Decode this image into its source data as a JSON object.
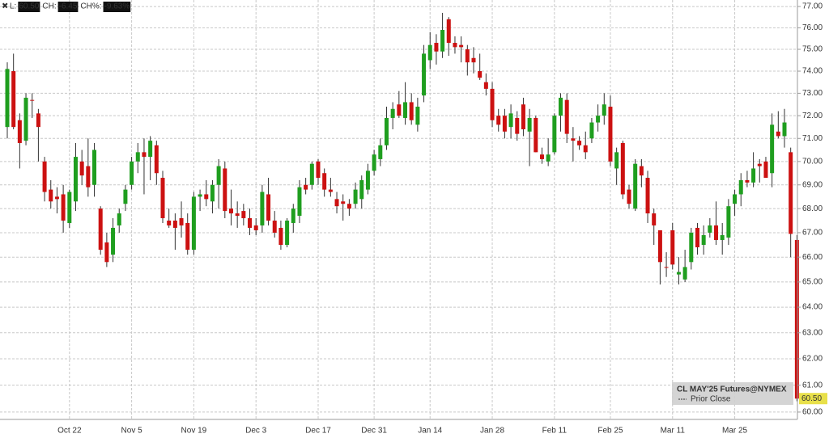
{
  "chart_data": {
    "type": "candlestick",
    "readout": [
      {
        "label": "L:",
        "value": "60.50"
      },
      {
        "label": "CH:",
        "value": "-6.45"
      },
      {
        "label": "CH%:",
        "value": "-9.63%"
      }
    ],
    "categories": [
      null,
      null,
      null,
      null,
      null,
      null,
      null,
      null,
      null,
      null,
      "Oct 22",
      null,
      null,
      null,
      null,
      null,
      null,
      null,
      null,
      null,
      "Nov 5",
      null,
      null,
      null,
      null,
      null,
      null,
      null,
      null,
      null,
      "Nov 19",
      null,
      null,
      null,
      null,
      null,
      null,
      null,
      null,
      null,
      "Dec 3",
      null,
      null,
      null,
      null,
      null,
      null,
      null,
      null,
      null,
      "Dec 17",
      null,
      null,
      null,
      null,
      null,
      null,
      null,
      null,
      "Dec 31",
      null,
      null,
      null,
      null,
      null,
      null,
      null,
      null,
      "Jan 14",
      null,
      null,
      null,
      null,
      null,
      null,
      null,
      null,
      null,
      "Jan 28",
      null,
      null,
      null,
      null,
      null,
      null,
      null,
      null,
      null,
      "Feb 11",
      null,
      null,
      null,
      null,
      null,
      null,
      null,
      null,
      "Feb 25",
      null,
      null,
      null,
      null,
      null,
      null,
      null,
      null,
      null,
      "Mar 11",
      null,
      null,
      null,
      null,
      null,
      null,
      null,
      null,
      null,
      "Mar 25",
      null,
      null,
      null,
      null,
      null,
      null,
      null,
      null,
      null,
      null
    ],
    "series": [
      {
        "name": "CL MAY'25 Futures@NYMEX",
        "up_color": "#1f9e1f",
        "down_color": "#cc1111",
        "wick_color": "#333333",
        "open": [
          71.5,
          74.0,
          71.8,
          70.9,
          72.7,
          72.1,
          70.0,
          68.8,
          68.5,
          68.6,
          67.4,
          68.3,
          70.0,
          69.8,
          69.0,
          68.0,
          66.6,
          66.1,
          67.3,
          68.2,
          69.0,
          70.0,
          70.4,
          70.2,
          70.7,
          69.3,
          67.5,
          67.5,
          67.6,
          67.4,
          66.3,
          68.5,
          68.6,
          68.3,
          69.0,
          69.7,
          68.0,
          67.8,
          67.9,
          67.6,
          67.3,
          67.3,
          68.6,
          67.5,
          67.2,
          66.5,
          67.4,
          67.7,
          69.0,
          69.0,
          70.0,
          69.5,
          68.8,
          68.4,
          68.3,
          68.2,
          68.2,
          68.4,
          68.8,
          69.6,
          70.1,
          70.7,
          71.9,
          72.5,
          71.9,
          72.6,
          71.6,
          72.9,
          74.5,
          75.3,
          74.9,
          76.4,
          75.3,
          75.2,
          75.0,
          74.6,
          74.0,
          73.5,
          73.2,
          72.0,
          72.0,
          71.5,
          71.9,
          72.5,
          71.3,
          71.9,
          70.3,
          70.0,
          70.4,
          72.0,
          72.7,
          71.0,
          70.9,
          70.7,
          71.0,
          71.7,
          72.0,
          72.4,
          69.7,
          70.8,
          68.8,
          68.0,
          69.8,
          69.3,
          67.8,
          67.1,
          65.6,
          67.1,
          65.3,
          65.1,
          65.8,
          67.2,
          66.5,
          67.0,
          67.3,
          66.7,
          66.8,
          68.2,
          68.6,
          69.2,
          69.1,
          69.9,
          70.0,
          69.5,
          71.3,
          71.1,
          70.4,
          66.7
        ],
        "high": [
          74.4,
          74.8,
          72.1,
          73.0,
          73.0,
          72.3,
          70.2,
          69.2,
          68.9,
          69.0,
          68.8,
          70.8,
          70.5,
          71.0,
          70.8,
          68.1,
          67.0,
          67.6,
          68.0,
          69.0,
          70.2,
          70.8,
          71.0,
          71.1,
          70.9,
          69.6,
          68.0,
          67.8,
          68.3,
          67.8,
          68.7,
          68.8,
          69.2,
          69.2,
          70.1,
          70.0,
          68.8,
          68.3,
          68.2,
          68.0,
          67.6,
          69.0,
          69.3,
          67.9,
          67.5,
          67.6,
          68.2,
          69.2,
          69.3,
          70.0,
          70.1,
          69.7,
          69.3,
          68.7,
          68.6,
          68.4,
          69.1,
          69.4,
          69.9,
          70.5,
          71.0,
          72.4,
          72.6,
          73.1,
          73.5,
          73.0,
          72.8,
          75.2,
          75.8,
          75.7,
          76.7,
          76.5,
          75.6,
          75.6,
          75.2,
          75.1,
          74.8,
          73.9,
          73.5,
          72.3,
          72.3,
          72.5,
          72.2,
          72.8,
          72.3,
          72.0,
          70.6,
          71.0,
          72.1,
          73.0,
          73.0,
          71.5,
          71.1,
          71.3,
          71.9,
          72.5,
          73.0,
          72.9,
          70.6,
          70.9,
          69.0,
          70.1,
          70.1,
          69.6,
          68.0,
          67.1,
          66.2,
          67.4,
          66.0,
          66.3,
          67.2,
          67.4,
          67.3,
          67.6,
          68.3,
          67.4,
          68.4,
          68.8,
          69.5,
          69.6,
          70.4,
          70.1,
          70.2,
          72.1,
          72.2,
          72.3,
          70.6,
          66.9
        ],
        "low": [
          71.0,
          71.4,
          69.7,
          70.7,
          71.9,
          70.0,
          68.3,
          68.0,
          67.8,
          67.0,
          67.2,
          67.9,
          69.0,
          68.5,
          68.5,
          66.1,
          65.6,
          65.8,
          67.0,
          67.9,
          68.8,
          69.5,
          68.6,
          69.2,
          69.0,
          67.4,
          67.2,
          66.3,
          66.8,
          66.1,
          66.1,
          67.9,
          68.1,
          67.8,
          68.0,
          67.6,
          67.3,
          67.2,
          67.3,
          66.9,
          66.9,
          67.0,
          67.3,
          66.8,
          66.3,
          66.4,
          67.0,
          67.4,
          68.6,
          68.8,
          69.0,
          68.5,
          68.5,
          67.8,
          67.5,
          67.7,
          68.0,
          68.0,
          68.6,
          69.4,
          69.8,
          70.5,
          71.4,
          71.9,
          71.6,
          71.6,
          71.3,
          72.6,
          74.1,
          74.3,
          74.6,
          74.7,
          74.8,
          74.4,
          73.8,
          73.9,
          73.6,
          72.9,
          71.5,
          71.3,
          71.0,
          71.0,
          70.9,
          71.1,
          69.8,
          70.4,
          69.9,
          69.8,
          70.3,
          71.3,
          70.8,
          70.0,
          70.5,
          70.1,
          70.8,
          71.3,
          71.6,
          69.8,
          69.0,
          68.4,
          68.0,
          67.9,
          68.9,
          67.4,
          66.5,
          64.9,
          65.2,
          65.5,
          64.9,
          65.0,
          65.5,
          66.1,
          66.1,
          66.8,
          66.5,
          66.1,
          66.5,
          67.7,
          68.1,
          68.9,
          68.9,
          69.1,
          69.3,
          68.9,
          71.0,
          70.6,
          66.0,
          60.4
        ],
        "close": [
          74.1,
          71.5,
          70.8,
          72.8,
          72.7,
          71.5,
          68.7,
          68.3,
          68.4,
          67.5,
          68.7,
          70.2,
          69.4,
          68.9,
          70.5,
          66.3,
          65.8,
          67.2,
          67.8,
          68.8,
          70.0,
          70.4,
          70.2,
          70.9,
          69.5,
          67.6,
          67.3,
          67.2,
          67.3,
          66.3,
          68.5,
          68.6,
          68.4,
          69.0,
          69.8,
          67.9,
          67.8,
          67.7,
          67.6,
          67.2,
          67.1,
          68.7,
          67.5,
          67.0,
          66.5,
          67.5,
          68.0,
          68.9,
          68.8,
          69.9,
          69.3,
          68.8,
          68.7,
          68.1,
          68.2,
          68.0,
          68.8,
          69.2,
          69.6,
          70.3,
          70.7,
          71.9,
          72.3,
          72.0,
          72.6,
          71.8,
          72.4,
          74.8,
          75.2,
          74.9,
          75.9,
          75.3,
          75.1,
          75.1,
          74.4,
          74.4,
          73.7,
          73.2,
          71.8,
          71.6,
          71.3,
          72.1,
          71.2,
          71.4,
          71.9,
          70.4,
          70.1,
          70.3,
          72.0,
          72.8,
          71.2,
          70.9,
          70.7,
          70.4,
          71.7,
          72.0,
          72.5,
          70.0,
          70.4,
          68.6,
          68.2,
          69.9,
          69.4,
          67.8,
          67.3,
          65.8,
          65.6,
          65.7,
          65.4,
          65.6,
          67.0,
          66.4,
          66.9,
          67.3,
          66.7,
          66.9,
          68.1,
          68.6,
          69.2,
          69.1,
          69.7,
          69.8,
          69.3,
          71.6,
          71.1,
          71.7,
          66.95,
          60.5
        ]
      }
    ],
    "legend_entries": [
      "Prior Close"
    ],
    "legend_position": "bottom-right",
    "last": {
      "value": 60.5,
      "label": "60.50"
    },
    "last_color": "#e8e04a",
    "log_scale": true,
    "grid": true,
    "ylim": [
      59.73,
      77.31
    ],
    "yticks": [
      {
        "value": 60,
        "label": "60.00"
      },
      {
        "value": 61,
        "label": "61.00"
      },
      {
        "value": 62,
        "label": "62.00"
      },
      {
        "value": 63,
        "label": "63.00"
      },
      {
        "value": 64,
        "label": "64.00"
      },
      {
        "value": 65,
        "label": "65.00"
      },
      {
        "value": 66,
        "label": "66.00"
      },
      {
        "value": 67,
        "label": "67.00"
      },
      {
        "value": 68,
        "label": "68.00"
      },
      {
        "value": 69,
        "label": "69.00"
      },
      {
        "value": 70,
        "label": "70.00"
      },
      {
        "value": 71,
        "label": "71.00"
      },
      {
        "value": 72,
        "label": "72.00"
      },
      {
        "value": 73,
        "label": "73.00"
      },
      {
        "value": 74,
        "label": "74.00"
      },
      {
        "value": 75,
        "label": "75.00"
      },
      {
        "value": 76,
        "label": "76.00"
      },
      {
        "value": 77,
        "label": "77.00"
      }
    ]
  }
}
